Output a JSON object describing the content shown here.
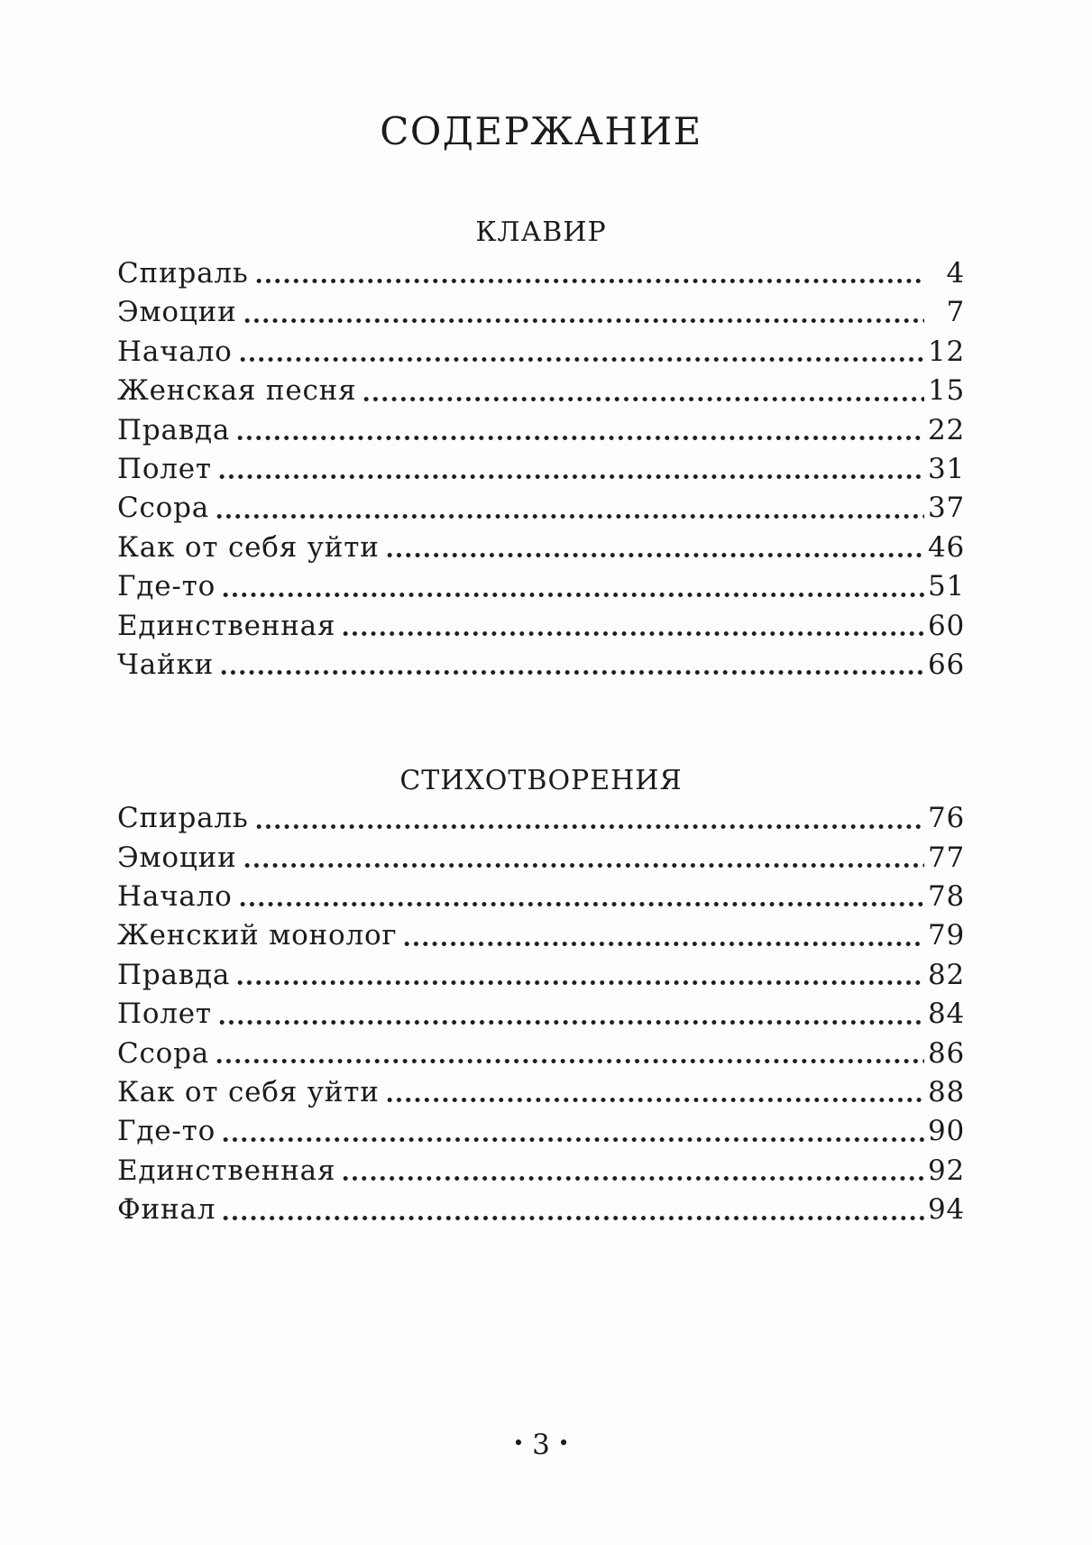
{
  "page": {
    "title": "СОДЕРЖАНИЕ",
    "sections": [
      {
        "heading": "КЛАВИР",
        "entries": [
          {
            "title": "Спираль",
            "page": "4"
          },
          {
            "title": "Эмоции",
            "page": "7"
          },
          {
            "title": "Начало",
            "page": "12"
          },
          {
            "title": "Женская песня",
            "page": "15"
          },
          {
            "title": "Правда",
            "page": "22"
          },
          {
            "title": "Полет",
            "page": "31"
          },
          {
            "title": "Ссора",
            "page": "37"
          },
          {
            "title": "Как от себя уйти",
            "page": "46"
          },
          {
            "title": "Где-то",
            "page": "51"
          },
          {
            "title": "Единственная",
            "page": "60"
          },
          {
            "title": "Чайки",
            "page": "66"
          }
        ]
      },
      {
        "heading": "СТИХОТВОРЕНИЯ",
        "entries": [
          {
            "title": "Спираль",
            "page": "76"
          },
          {
            "title": "Эмоции",
            "page": "77"
          },
          {
            "title": "Начало",
            "page": "78"
          },
          {
            "title": "Женский монолог",
            "page": "79"
          },
          {
            "title": "Правда",
            "page": "82"
          },
          {
            "title": "Полет",
            "page": "84"
          },
          {
            "title": "Ссора",
            "page": "86"
          },
          {
            "title": "Как от себя уйти",
            "page": "88"
          },
          {
            "title": "Где-то",
            "page": "90"
          },
          {
            "title": "Единственная",
            "page": "92"
          },
          {
            "title": "Финал",
            "page": "94"
          }
        ]
      }
    ],
    "footer": {
      "bullet": "•",
      "page_number": "3"
    }
  }
}
